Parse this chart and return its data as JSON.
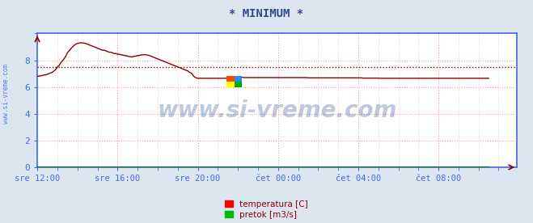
{
  "title": "* MINIMUM *",
  "title_color": "#2e4a8b",
  "bg_color": "#dce6f0",
  "plot_bg_color": "#ffffff",
  "grid_color": "#f0a0a0",
  "xlabel": "",
  "ylabel": "",
  "ylim": [
    0,
    10
  ],
  "yticks": [
    0,
    2,
    4,
    6,
    8
  ],
  "xlim": [
    0,
    287
  ],
  "xtick_labels": [
    "sre 12:00",
    "sre 16:00",
    "sre 20:00",
    "čet 00:00",
    "čet 04:00",
    "čet 08:00"
  ],
  "xtick_positions": [
    0,
    48,
    96,
    144,
    192,
    240
  ],
  "line_color": "#8b0000",
  "line_color2": "#008000",
  "hline_value": 7.5,
  "hline_color": "#8b0000",
  "hline_style": ":",
  "watermark": "www.si-vreme.com",
  "watermark_color": "#1a3a8a",
  "watermark_alpha": 0.28,
  "left_label": "www.si-vreme.com",
  "left_label_color": "#4169e1",
  "legend_labels": [
    "temperatura [C]",
    "pretok [m3/s]"
  ],
  "legend_colors": [
    "#ff0000",
    "#00bb00"
  ],
  "tick_color": "#4169e1",
  "spine_color": "#4169e1",
  "temp_data": [
    6.8,
    6.8,
    6.85,
    6.85,
    6.9,
    6.9,
    6.95,
    7.0,
    7.05,
    7.1,
    7.2,
    7.3,
    7.5,
    7.6,
    7.8,
    7.95,
    8.1,
    8.3,
    8.55,
    8.7,
    8.85,
    9.0,
    9.1,
    9.2,
    9.25,
    9.28,
    9.3,
    9.3,
    9.28,
    9.25,
    9.2,
    9.15,
    9.1,
    9.05,
    9.0,
    8.95,
    8.9,
    8.85,
    8.8,
    8.75,
    8.75,
    8.7,
    8.65,
    8.6,
    8.6,
    8.55,
    8.5,
    8.5,
    8.45,
    8.45,
    8.4,
    8.4,
    8.35,
    8.35,
    8.3,
    8.28,
    8.25,
    8.25,
    8.3,
    8.3,
    8.35,
    8.35,
    8.4,
    8.4,
    8.42,
    8.4,
    8.38,
    8.35,
    8.3,
    8.25,
    8.2,
    8.15,
    8.1,
    8.05,
    8.0,
    7.95,
    7.9,
    7.85,
    7.8,
    7.75,
    7.7,
    7.65,
    7.6,
    7.55,
    7.5,
    7.45,
    7.4,
    7.35,
    7.3,
    7.25,
    7.2,
    7.1,
    7.05,
    6.9,
    6.75,
    6.68,
    6.65,
    6.65,
    6.65,
    6.65,
    6.65,
    6.65,
    6.65,
    6.65,
    6.65,
    6.65,
    6.65,
    6.65,
    6.65,
    6.65,
    6.65,
    6.65,
    6.65,
    6.65,
    6.65,
    6.65,
    6.65,
    6.7,
    6.7,
    6.72,
    6.72,
    6.72,
    6.72,
    6.72,
    6.7,
    6.7,
    6.7,
    6.7,
    6.7,
    6.7,
    6.7,
    6.7,
    6.7,
    6.7,
    6.7,
    6.7,
    6.7,
    6.7,
    6.7,
    6.7,
    6.7,
    6.7,
    6.7,
    6.7,
    6.7,
    6.7,
    6.7,
    6.7,
    6.7,
    6.7,
    6.7,
    6.7,
    6.7,
    6.7,
    6.7,
    6.7,
    6.7,
    6.7,
    6.7,
    6.7,
    6.7,
    6.7,
    6.68,
    6.68,
    6.68,
    6.68,
    6.68,
    6.68,
    6.68,
    6.68,
    6.68,
    6.68,
    6.68,
    6.68,
    6.68,
    6.68,
    6.68,
    6.68,
    6.68,
    6.68,
    6.68,
    6.68,
    6.68,
    6.68,
    6.68,
    6.68,
    6.68,
    6.68,
    6.68,
    6.68,
    6.68,
    6.68,
    6.68,
    6.68,
    6.68,
    6.66,
    6.66,
    6.66,
    6.66,
    6.66,
    6.66,
    6.66,
    6.66,
    6.66,
    6.66,
    6.65,
    6.65,
    6.65,
    6.65,
    6.65,
    6.65,
    6.65,
    6.65,
    6.65,
    6.65,
    6.65,
    6.65,
    6.65,
    6.65,
    6.65,
    6.65,
    6.65,
    6.65,
    6.65,
    6.65,
    6.65,
    6.65,
    6.65,
    6.65,
    6.65,
    6.65,
    6.65,
    6.65,
    6.65,
    6.65,
    6.65,
    6.65,
    6.65,
    6.65,
    6.65,
    6.65,
    6.65,
    6.65,
    6.65,
    6.65,
    6.65,
    6.65,
    6.65,
    6.65,
    6.65,
    6.65,
    6.65,
    6.65,
    6.65,
    6.65,
    6.65,
    6.65,
    6.65,
    6.65,
    6.65,
    6.65,
    6.65,
    6.65,
    6.65,
    6.65,
    6.65,
    6.65,
    6.65,
    6.65,
    6.65,
    6.65
  ]
}
